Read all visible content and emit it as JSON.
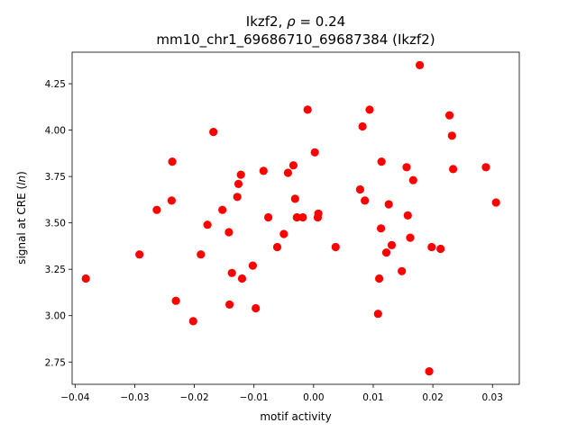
{
  "chart_data": {
    "type": "scatter",
    "title": "Ikzf2, ρ = 0.24",
    "title_line1_prefix": "Ikzf2, ",
    "title_line1_rho": "ρ",
    "title_line1_suffix": " = 0.24",
    "title_line2": "mm10_chr1_69686710_69687384 (Ikzf2)",
    "xlabel": "motif activity",
    "ylabel_prefix": "signal at CRE (",
    "ylabel_italic": "ln",
    "ylabel_suffix": ")",
    "xlim": [
      -0.0405,
      0.0345
    ],
    "ylim": [
      2.63,
      4.42
    ],
    "xticks": [
      -0.04,
      -0.03,
      -0.02,
      -0.01,
      0.0,
      0.01,
      0.02,
      0.03
    ],
    "xtick_labels": [
      "−0.04",
      "−0.03",
      "−0.02",
      "−0.01",
      "0.00",
      "0.01",
      "0.02",
      "0.03"
    ],
    "yticks": [
      2.75,
      3.0,
      3.25,
      3.5,
      3.75,
      4.0,
      4.25
    ],
    "ytick_labels": [
      "2.75",
      "3.00",
      "3.25",
      "3.50",
      "3.75",
      "4.00",
      "4.25"
    ],
    "marker_color": "#ff0000",
    "grid": false,
    "x": [
      -0.0382,
      -0.0292,
      -0.0263,
      -0.0238,
      -0.0237,
      -0.0231,
      -0.0202,
      -0.0189,
      -0.0178,
      -0.0168,
      -0.0153,
      -0.0142,
      -0.0141,
      -0.0137,
      -0.0128,
      -0.0126,
      -0.0122,
      -0.012,
      -0.0102,
      -0.0097,
      -0.0084,
      -0.0076,
      -0.0061,
      -0.005,
      -0.0043,
      -0.0034,
      -0.0031,
      -0.0028,
      -0.0018,
      -0.001,
      0.0002,
      0.0007,
      0.0008,
      0.0037,
      0.0078,
      0.0082,
      0.0086,
      0.0094,
      0.0108,
      0.011,
      0.0113,
      0.0114,
      0.0122,
      0.0126,
      0.0131,
      0.0148,
      0.0156,
      0.0158,
      0.0162,
      0.0167,
      0.0178,
      0.0194,
      0.0198,
      0.0213,
      0.0228,
      0.0232,
      0.0234,
      0.0289,
      0.0306
    ],
    "y": [
      3.2,
      3.33,
      3.57,
      3.62,
      3.83,
      3.08,
      2.97,
      3.33,
      3.49,
      3.99,
      3.57,
      3.45,
      3.06,
      3.23,
      3.64,
      3.71,
      3.76,
      3.2,
      3.27,
      3.04,
      3.78,
      3.53,
      3.37,
      3.44,
      3.77,
      3.81,
      3.63,
      3.53,
      3.53,
      4.11,
      3.88,
      3.53,
      3.55,
      3.37,
      3.68,
      4.02,
      3.62,
      4.11,
      3.01,
      3.2,
      3.47,
      3.83,
      3.34,
      3.6,
      3.38,
      3.24,
      3.8,
      3.54,
      3.42,
      3.73,
      4.35,
      2.7,
      3.37,
      3.36,
      4.08,
      3.97,
      3.79,
      3.8,
      3.61
    ]
  }
}
